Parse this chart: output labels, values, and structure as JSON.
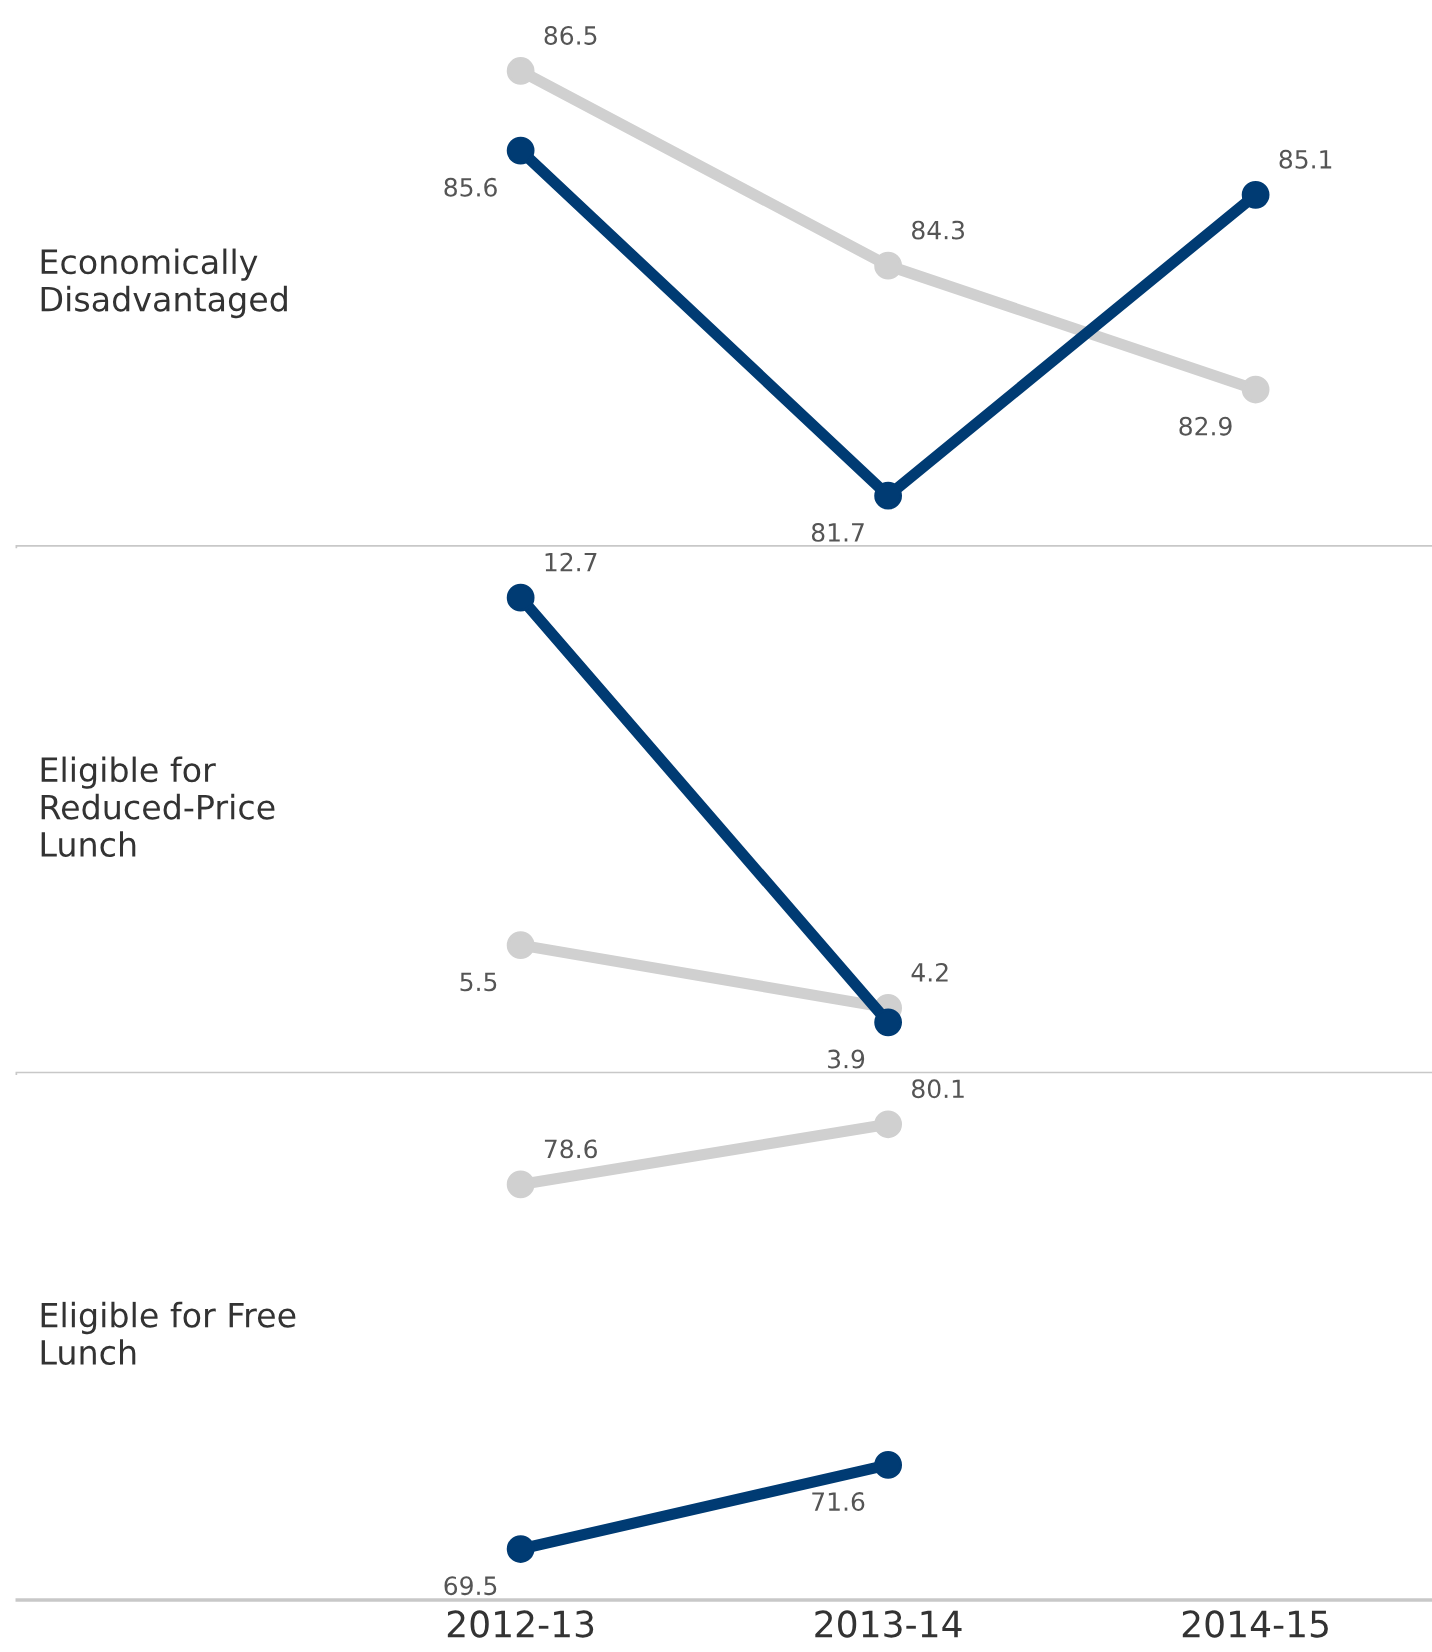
{
  "chart_data": [
    {
      "type": "line",
      "ylabel": "Economically\nDisadvantaged",
      "categories": [
        "2012-13",
        "2013-14",
        "2014-15"
      ],
      "marker": "circle",
      "line_style": "solid",
      "data_labels": true,
      "tick_labels": false,
      "series": [
        {
          "color": "#d0d0d0",
          "values": [
            86.5,
            84.3,
            82.9
          ]
        },
        {
          "color": "#003b73",
          "values": [
            85.6,
            81.7,
            85.1
          ]
        }
      ]
    },
    {
      "type": "line",
      "ylabel": "Eligible for\nReduced-Price\nLunch",
      "categories": [
        "2012-13",
        "2013-14",
        "2014-15"
      ],
      "marker": "circle",
      "line_style": "solid",
      "data_labels": true,
      "tick_labels": false,
      "series": [
        {
          "color": "#d0d0d0",
          "values": [
            5.5,
            4.2,
            null
          ]
        },
        {
          "color": "#003b73",
          "values": [
            12.7,
            3.9,
            null
          ]
        }
      ]
    },
    {
      "type": "line",
      "ylabel": "Eligible for Free\nLunch",
      "categories": [
        "2012-13",
        "2013-14",
        "2014-15"
      ],
      "marker": "circle",
      "line_style": "solid",
      "data_labels": true,
      "tick_labels": "x",
      "series": [
        {
          "color": "#d0d0d0",
          "values": [
            78.6,
            80.1,
            null
          ]
        },
        {
          "color": "#003b73",
          "values": [
            69.5,
            71.6,
            null
          ]
        }
      ]
    }
  ]
}
